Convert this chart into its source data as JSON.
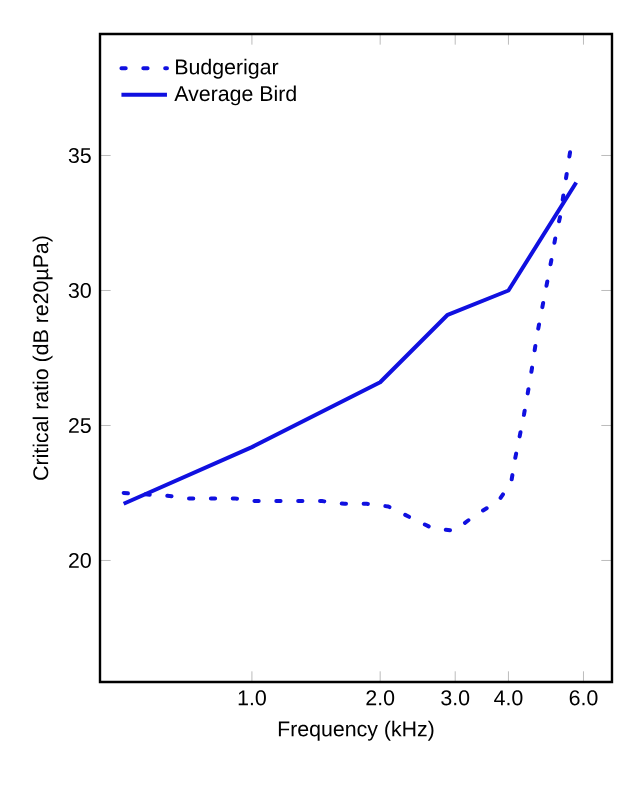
{
  "chart_data": {
    "type": "line",
    "xlabel": "Frequency (kHz)",
    "ylabel": "Critical ratio (dB re20µPa)",
    "log": "x",
    "xlim": [
      0.44,
      7.0
    ],
    "ylim": [
      15.5,
      39.5
    ],
    "xticks": [
      {
        "value": 1,
        "label": "1.0"
      },
      {
        "value": 2,
        "label": "2.0"
      },
      {
        "value": 3,
        "label": "3.0"
      },
      {
        "value": 4,
        "label": "4.0"
      },
      {
        "value": 6,
        "label": "6.0"
      }
    ],
    "yticks": [
      20,
      25,
      30,
      35
    ],
    "grid": false,
    "legend": "top left",
    "series": [
      {
        "name": "Budgerigar",
        "color": "#1010e0",
        "line_style": "dotted",
        "x": [
          0.5,
          0.63,
          0.71,
          0.8,
          0.91,
          1.02,
          1.15,
          1.3,
          1.46,
          1.65,
          1.86,
          2.09,
          2.35,
          2.65,
          2.98,
          3.36,
          3.79,
          4.06,
          4.15,
          4.25,
          4.35,
          4.44,
          4.54,
          4.62,
          4.7,
          4.82,
          4.93,
          5.04,
          5.16,
          5.3,
          5.39,
          5.49,
          5.59
        ],
        "values": [
          22.5,
          22.4,
          22.3,
          22.3,
          22.3,
          22.2,
          22.2,
          22.2,
          22.2,
          22.1,
          22.1,
          22.0,
          21.6,
          21.2,
          21.1,
          21.7,
          22.2,
          22.9,
          23.8,
          24.6,
          25.4,
          26.2,
          27.1,
          27.9,
          28.6,
          29.5,
          30.3,
          31.1,
          32.0,
          32.8,
          33.6,
          34.4,
          35.2
        ]
      },
      {
        "name": "Average Bird",
        "color": "#1010e0",
        "line_style": "solid",
        "x": [
          0.5,
          1.0,
          2.0,
          2.88,
          4.0,
          5.77
        ],
        "values": [
          22.1,
          24.2,
          26.6,
          29.1,
          30.0,
          34.0
        ]
      }
    ]
  }
}
